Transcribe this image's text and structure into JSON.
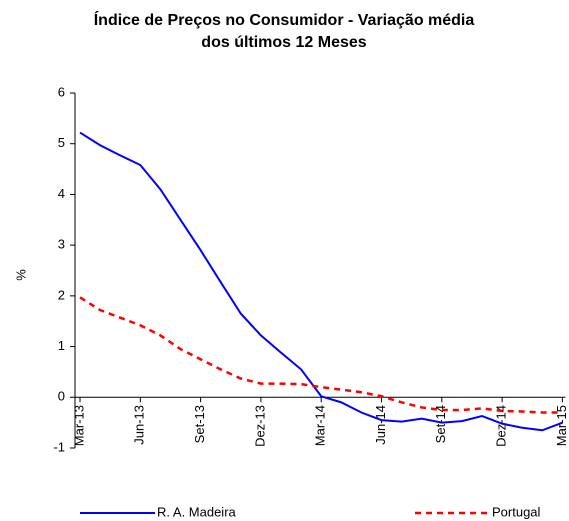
{
  "chart_data": {
    "type": "line",
    "title": "Índice de Preços no Consumidor - Variação média dos últimos 12 Meses",
    "y_label": "%",
    "categories": [
      "Mar-13",
      null,
      null,
      "Jun-13",
      null,
      null,
      "Set-13",
      null,
      null,
      "Dez-13",
      null,
      null,
      "Mar-14",
      null,
      null,
      "Jun-14",
      null,
      null,
      "Set-14",
      null,
      null,
      "Dez-14",
      null,
      null,
      "Mar-15"
    ],
    "series": [
      {
        "name": "R. A. Madeira",
        "color": "#0000ff",
        "dashed": false,
        "values": [
          5.22,
          4.97,
          4.77,
          4.58,
          4.1,
          3.5,
          2.9,
          2.27,
          1.65,
          1.22,
          0.88,
          0.55,
          0.02,
          -0.1,
          -0.3,
          -0.45,
          -0.48,
          -0.42,
          -0.5,
          -0.47,
          -0.37,
          -0.52,
          -0.6,
          -0.65,
          -0.5
        ]
      },
      {
        "name": "Portugal",
        "color": "#ff0000",
        "dashed": true,
        "values": [
          1.97,
          1.72,
          1.57,
          1.42,
          1.22,
          0.95,
          0.75,
          0.55,
          0.37,
          0.27,
          0.27,
          0.26,
          0.2,
          0.15,
          0.1,
          0.02,
          -0.1,
          -0.2,
          -0.25,
          -0.25,
          -0.22,
          -0.27,
          -0.28,
          -0.3,
          -0.3
        ]
      }
    ],
    "ylim": [
      -1,
      6
    ],
    "yticks": [
      -1,
      0,
      1,
      2,
      3,
      4,
      5,
      6
    ],
    "legend": "bottom"
  }
}
